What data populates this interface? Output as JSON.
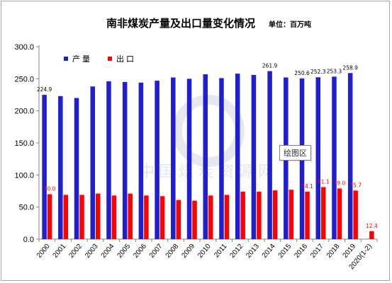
{
  "chart_data": {
    "type": "bar",
    "title": "南非煤炭产量及出口量变化情况",
    "unit_label": "单位：百万吨",
    "categories": [
      "2000",
      "2001",
      "2002",
      "2003",
      "2004",
      "2005",
      "2006",
      "2007",
      "2008",
      "2009",
      "2010",
      "2011",
      "2012",
      "2013",
      "2014",
      "2015",
      "2016",
      "2017",
      "2018",
      "2019",
      "2020(1-2)"
    ],
    "series": [
      {
        "name": "产量",
        "color": "#1f1fd0",
        "values": [
          224.9,
          223,
          220,
          238,
          246,
          245,
          244,
          247,
          252,
          250,
          257,
          251,
          258,
          256,
          261.9,
          252,
          250.6,
          252.3,
          253.3,
          258.9,
          null
        ],
        "labels": [
          "224.9",
          "",
          "",
          "",
          "",
          "",
          "",
          "",
          "",
          "",
          "",
          "",
          "",
          "",
          "261.9",
          "",
          "250.6",
          "252.3",
          "253.3",
          "258.9",
          ""
        ]
      },
      {
        "name": "出口",
        "color": "#ff0000",
        "values": [
          70.0,
          69,
          69,
          71,
          68,
          71,
          68,
          67,
          61,
          60,
          68,
          69,
          74,
          74,
          76,
          77,
          74.1,
          81.1,
          79.0,
          75.7,
          12.4
        ],
        "labels": [
          "70.0",
          "",
          "",
          "",
          "",
          "",
          "",
          "",
          "",
          "",
          "",
          "",
          "",
          "",
          "",
          "",
          "74.1",
          "81.1",
          "79.0",
          "75.7",
          "12.4"
        ]
      }
    ],
    "yticks": [
      "0.0",
      "50.0",
      "100.0",
      "150.0",
      "200.0",
      "250.0",
      "300.0"
    ],
    "ylim": [
      0,
      300
    ],
    "legend_position": "top-left",
    "grid": false,
    "watermark": "中国煤炭资源网"
  },
  "tooltip": {
    "text": "绘图区"
  }
}
